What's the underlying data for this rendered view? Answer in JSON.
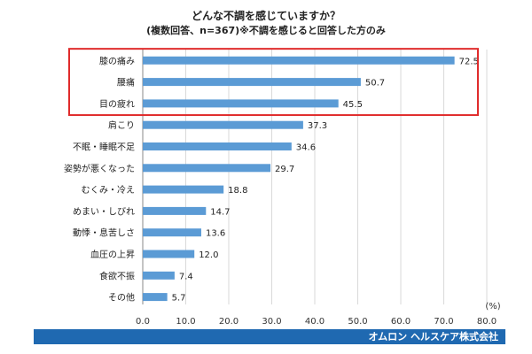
{
  "chart_data": {
    "type": "bar",
    "orientation": "horizontal",
    "title": "どんな不調を感じていますか？",
    "subtitle": "(複数回答、n=367)※不調を感じると回答した方のみ",
    "categories": [
      "膝の痛み",
      "腰痛",
      "目の疲れ",
      "肩こり",
      "不眠・睡眠不足",
      "姿勢が悪くなった",
      "むくみ・冷え",
      "めまい・しびれ",
      "動悸・息苦しさ",
      "血圧の上昇",
      "食欲不振",
      "その他"
    ],
    "values": [
      72.5,
      50.7,
      45.5,
      37.3,
      34.6,
      29.7,
      18.8,
      14.7,
      13.6,
      12.0,
      7.4,
      5.7
    ],
    "value_labels": [
      "72.5",
      "50.7",
      "45.5",
      "37.3",
      "34.6",
      "29.7",
      "18.8",
      "14.7",
      "13.6",
      "12.0",
      "7.4",
      "5.7"
    ],
    "xlim": [
      0,
      80
    ],
    "x_ticks": [
      "0.0",
      "10.0",
      "20.0",
      "30.0",
      "40.0",
      "50.0",
      "60.0",
      "70.0",
      "80.0"
    ],
    "x_unit": "(%)",
    "bar_color": "#5b9bd5",
    "highlight_color": "#e02b2b",
    "highlighted_count": 3,
    "grid": true
  },
  "footer": {
    "text": "オムロン ヘルスケア株式会社",
    "color": "#1f69b1"
  }
}
